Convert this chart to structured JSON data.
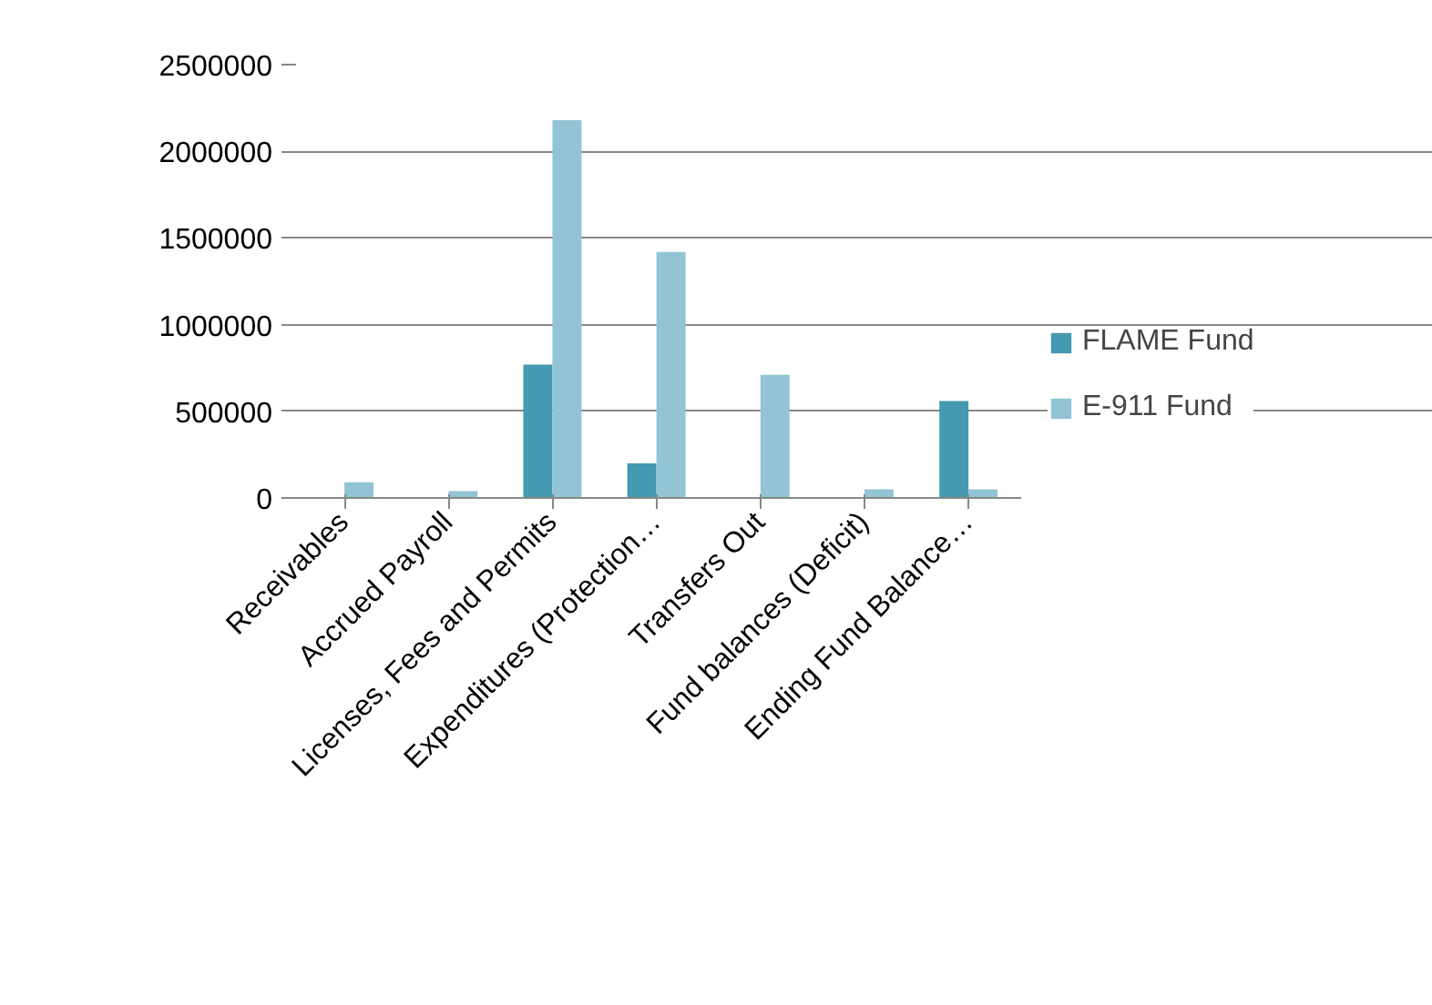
{
  "chart_data": {
    "type": "bar",
    "categories": [
      "Receivables",
      "Accrued Payroll",
      "Licenses, Fees and Permits",
      "Expenditures (Protection…",
      "Transfers Out",
      "Fund balances (Deficit)",
      "Ending Fund Balance…"
    ],
    "series": [
      {
        "name": "FLAME Fund",
        "color": "#4599b0",
        "values": [
          0,
          0,
          770000,
          200000,
          0,
          0,
          560000
        ]
      },
      {
        "name": "E-911 Fund",
        "color": "#93c4d5",
        "values": [
          90000,
          40000,
          2180000,
          1420000,
          710000,
          50000,
          50000
        ]
      }
    ],
    "ylim": [
      0,
      2500000
    ],
    "yticks": [
      0,
      500000,
      1000000,
      1500000,
      2000000,
      2500000
    ],
    "grid": "y",
    "legend": "right"
  }
}
